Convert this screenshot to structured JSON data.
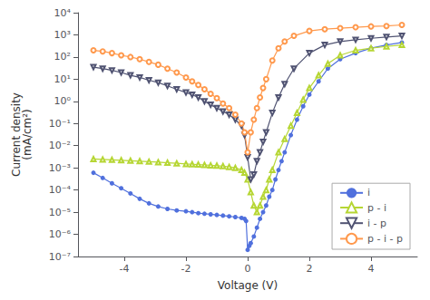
{
  "chart_data": {
    "type": "line",
    "xlabel": "Voltage (V)",
    "ylabel": "Current density\n(mA/cm²)",
    "log": "y",
    "grid": false,
    "legend": "lower right",
    "xlim": [
      -5.5,
      5.5
    ],
    "xticks": [
      -4,
      -2,
      0,
      2,
      4
    ],
    "ylim": [
      1e-07,
      10000.0
    ],
    "yticks": [
      {
        "value": 1e-07,
        "label": "10⁻⁷"
      },
      {
        "value": 1e-06,
        "label": "10⁻⁶"
      },
      {
        "value": 1e-05,
        "label": "10⁻⁵"
      },
      {
        "value": 0.0001,
        "label": "10⁻⁴"
      },
      {
        "value": 0.001,
        "label": "10⁻³"
      },
      {
        "value": 0.01,
        "label": "10⁻²"
      },
      {
        "value": 0.1,
        "label": "10⁻¹"
      },
      {
        "value": 1,
        "label": "10⁰"
      },
      {
        "value": 10,
        "label": "10¹"
      },
      {
        "value": 100,
        "label": "10²"
      },
      {
        "value": 1000,
        "label": "10³"
      },
      {
        "value": 10000,
        "label": "10⁴"
      }
    ],
    "series": [
      {
        "name": "i",
        "marker": "circle",
        "line_style": "solid",
        "x": [
          -5.0,
          -4.7,
          -4.4,
          -4.1,
          -3.8,
          -3.5,
          -3.2,
          -2.9,
          -2.6,
          -2.3,
          -2.0,
          -1.8,
          -1.6,
          -1.4,
          -1.2,
          -1.0,
          -0.8,
          -0.6,
          -0.4,
          -0.2,
          -0.1,
          -0.05,
          0.0,
          0.05,
          0.1,
          0.2,
          0.3,
          0.4,
          0.5,
          0.6,
          0.7,
          0.8,
          0.9,
          1.0,
          1.1,
          1.2,
          1.4,
          1.6,
          1.8,
          2.0,
          2.3,
          2.6,
          3.0,
          3.5,
          4.0,
          4.5,
          5.0
        ],
        "values": [
          0.0006,
          0.00035,
          0.0002,
          0.00012,
          7e-05,
          4e-05,
          2.5e-05,
          1.8e-05,
          1.4e-05,
          1.2e-05,
          1.1e-05,
          1e-05,
          9e-06,
          8.5e-06,
          8e-06,
          7.5e-06,
          7e-06,
          6.5e-06,
          6e-06,
          5.5e-06,
          5e-06,
          4e-06,
          2e-07,
          3e-07,
          4e-07,
          8e-07,
          2e-06,
          5e-06,
          1e-05,
          2e-05,
          5e-05,
          0.0001,
          0.0003,
          0.0008,
          0.002,
          0.005,
          0.03,
          0.15,
          0.6,
          2.0,
          8.0,
          30.0,
          80.0,
          150.0,
          250.0,
          350.0,
          450.0
        ]
      },
      {
        "name": "p - i",
        "marker": "open-triangle-up",
        "line_style": "solid",
        "x": [
          -5.0,
          -4.7,
          -4.4,
          -4.1,
          -3.8,
          -3.5,
          -3.2,
          -2.9,
          -2.6,
          -2.3,
          -2.0,
          -1.8,
          -1.6,
          -1.4,
          -1.2,
          -1.0,
          -0.8,
          -0.6,
          -0.4,
          -0.2,
          -0.1,
          0.0,
          0.1,
          0.2,
          0.3,
          0.4,
          0.5,
          0.6,
          0.7,
          0.8,
          1.0,
          1.2,
          1.4,
          1.6,
          1.8,
          2.0,
          2.3,
          2.6,
          3.0,
          3.5,
          4.0,
          4.5,
          5.0
        ],
        "values": [
          0.0025,
          0.0024,
          0.0023,
          0.0022,
          0.0021,
          0.002,
          0.0019,
          0.0018,
          0.0017,
          0.0016,
          0.0015,
          0.00145,
          0.0014,
          0.00135,
          0.0013,
          0.00125,
          0.0012,
          0.0011,
          0.001,
          0.0008,
          0.0006,
          0.0003,
          8e-05,
          2e-05,
          1e-05,
          2e-05,
          5e-05,
          0.0001,
          0.0003,
          0.0008,
          0.005,
          0.02,
          0.08,
          0.3,
          1.2,
          4.0,
          15.0,
          50.0,
          120.0,
          200.0,
          250.0,
          300.0,
          350.0
        ]
      },
      {
        "name": "i - p",
        "marker": "open-triangle-down",
        "line_style": "solid",
        "x": [
          -5.0,
          -4.7,
          -4.4,
          -4.1,
          -3.8,
          -3.5,
          -3.2,
          -2.9,
          -2.6,
          -2.3,
          -2.0,
          -1.8,
          -1.6,
          -1.4,
          -1.2,
          -1.0,
          -0.8,
          -0.6,
          -0.4,
          -0.2,
          -0.1,
          0.0,
          0.1,
          0.2,
          0.3,
          0.4,
          0.5,
          0.6,
          0.8,
          1.0,
          1.2,
          1.5,
          2.0,
          2.5,
          3.0,
          3.5,
          4.0,
          4.5,
          5.0
        ],
        "values": [
          35.0,
          30.0,
          25.0,
          20.0,
          15.0,
          12.0,
          9.0,
          7.0,
          5.0,
          3.5,
          2.5,
          2.0,
          1.5,
          1.0,
          0.7,
          0.5,
          0.35,
          0.25,
          0.15,
          0.08,
          0.03,
          0.003,
          0.0003,
          0.0005,
          0.002,
          0.005,
          0.015,
          0.04,
          0.3,
          1.5,
          6.0,
          30.0,
          150.0,
          350.0,
          500.0,
          600.0,
          700.0,
          800.0,
          900.0
        ]
      },
      {
        "name": "p - i - p",
        "marker": "open-circle",
        "line_style": "solid",
        "x": [
          -5.0,
          -4.7,
          -4.4,
          -4.1,
          -3.8,
          -3.5,
          -3.2,
          -2.9,
          -2.6,
          -2.3,
          -2.0,
          -1.8,
          -1.6,
          -1.4,
          -1.2,
          -1.0,
          -0.8,
          -0.6,
          -0.4,
          -0.2,
          -0.1,
          0.0,
          0.1,
          0.2,
          0.3,
          0.4,
          0.5,
          0.6,
          0.8,
          1.0,
          1.2,
          1.5,
          2.0,
          2.5,
          3.0,
          3.5,
          4.0,
          4.5,
          5.0
        ],
        "values": [
          200.0,
          180.0,
          150.0,
          120.0,
          100.0,
          80.0,
          60.0,
          45.0,
          30.0,
          20.0,
          12.0,
          8.0,
          5.5,
          3.5,
          2.2,
          1.4,
          0.8,
          0.5,
          0.25,
          0.1,
          0.04,
          0.005,
          0.04,
          0.15,
          0.5,
          1.5,
          4.0,
          10.0,
          70.0,
          250.0,
          500.0,
          900.0,
          1500.0,
          1800.0,
          2000.0,
          2200.0,
          2400.0,
          2500.0,
          2800.0
        ]
      }
    ]
  }
}
